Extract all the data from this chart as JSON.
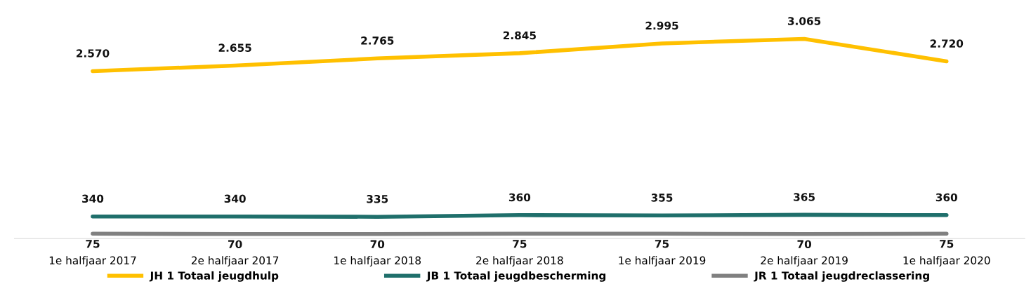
{
  "chart_data": {
    "type": "line",
    "categories": [
      "1e halfjaar 2017",
      "2e halfjaar 2017",
      "1e halfjaar 2018",
      "2e halfjaar 2018",
      "1e halfjaar 2019",
      "2e halfjaar 2019",
      "1e halfjaar 2020"
    ],
    "series": [
      {
        "name": "JH 1 Totaal jeugdhulp",
        "color": "#ffc000",
        "values": [
          2570,
          2655,
          2765,
          2845,
          2995,
          3065,
          2720
        ],
        "value_labels": [
          "2.570",
          "2.655",
          "2.765",
          "2.845",
          "2.995",
          "3.065",
          "2.720"
        ]
      },
      {
        "name": "JB 1 Totaal jeugdbescherming",
        "color": "#1f6f6b",
        "values": [
          340,
          340,
          335,
          360,
          355,
          365,
          360
        ],
        "value_labels": [
          "340",
          "340",
          "335",
          "360",
          "355",
          "365",
          "360"
        ]
      },
      {
        "name": "JR 1 Totaal jeugdreclassering",
        "color": "#808080",
        "values": [
          75,
          70,
          70,
          75,
          75,
          70,
          75
        ],
        "value_labels": [
          "75",
          "70",
          "70",
          "75",
          "75",
          "70",
          "75"
        ]
      }
    ],
    "relative": false,
    "legend": "bottom",
    "grid": false,
    "marker": "none",
    "line_style": "solid"
  }
}
